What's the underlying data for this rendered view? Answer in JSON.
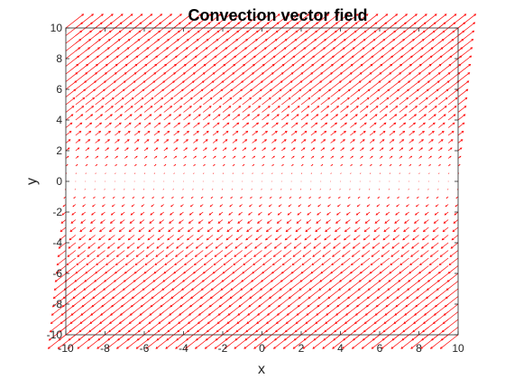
{
  "chart_data": {
    "type": "quiver",
    "title": "Convection vector field",
    "xlabel": "x",
    "ylabel": "y",
    "xlim": [
      -10,
      10
    ],
    "ylim": [
      -10,
      10
    ],
    "xticks": [
      "-10",
      "-8",
      "-6",
      "-4",
      "-2",
      "0",
      "2",
      "4",
      "6",
      "8",
      "10"
    ],
    "yticks": [
      "-10",
      "-8",
      "-6",
      "-4",
      "-2",
      "0",
      "2",
      "4",
      "6",
      "8",
      "10"
    ],
    "grid": false,
    "arrow_color": "#ff0000",
    "field": {
      "x_range": [
        -10,
        10
      ],
      "y_range": [
        -10,
        10
      ],
      "spacing": 0.5,
      "u": "y",
      "v": "y"
    }
  }
}
